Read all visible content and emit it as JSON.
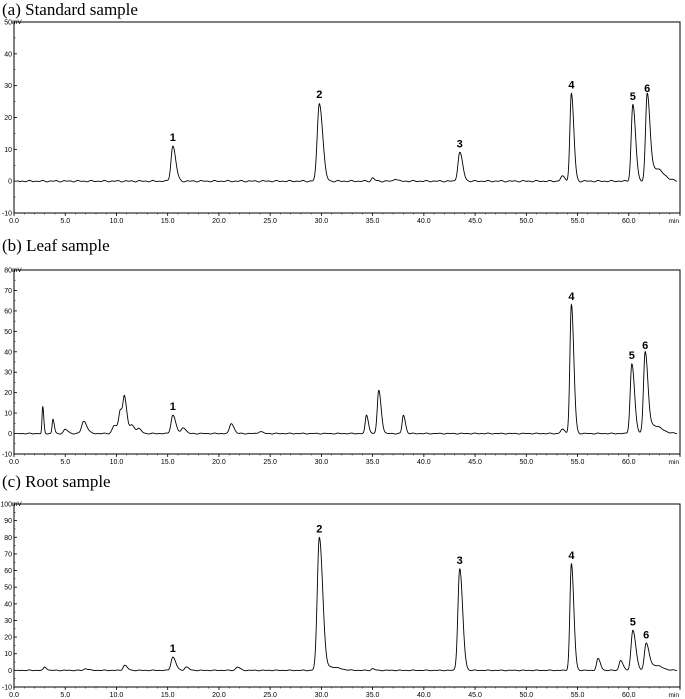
{
  "chart_data": [
    {
      "type": "line",
      "title": "(a) Standard sample",
      "yunit": "mV",
      "xunit": "min",
      "xlim": [
        0,
        65
      ],
      "ylim": [
        -10,
        50
      ],
      "xticks": [
        "0.0",
        "5.0",
        "10.0",
        "15.0",
        "20.0",
        "25.0",
        "30.0",
        "35.0",
        "40.0",
        "45.0",
        "50.0",
        "55.0",
        "60.0",
        "65.0"
      ],
      "yticks": [
        "-10",
        "0",
        "10",
        "20",
        "30",
        "40",
        "50"
      ],
      "peaks": [
        {
          "label": "1",
          "x": 15.5,
          "y": 11,
          "w": 0.22
        },
        {
          "label": "2",
          "x": 29.8,
          "y": 24.5,
          "w": 0.25
        },
        {
          "label": "3",
          "x": 43.5,
          "y": 9,
          "w": 0.22
        },
        {
          "label": "4",
          "x": 54.4,
          "y": 27.5,
          "w": 0.18
        },
        {
          "label": "5",
          "x": 60.4,
          "y": 24,
          "w": 0.2
        },
        {
          "label": "6",
          "x": 61.8,
          "y": 26.5,
          "w": 0.2
        }
      ],
      "minor_peaks": [
        {
          "x": 35.0,
          "y": 1.0,
          "w": 0.15
        },
        {
          "x": 37.2,
          "y": 0.8,
          "w": 0.15
        },
        {
          "x": 53.5,
          "y": 1.5,
          "w": 0.2
        },
        {
          "x": 62.6,
          "y": 4.0,
          "w": 0.6
        }
      ]
    },
    {
      "type": "line",
      "title": "(b) Leaf sample",
      "yunit": "mV",
      "xunit": "min",
      "xlim": [
        0,
        65
      ],
      "ylim": [
        -10,
        80
      ],
      "xticks": [
        "0.0",
        "5.0",
        "10.0",
        "15.0",
        "20.0",
        "25.0",
        "30.0",
        "35.0",
        "40.0",
        "45.0",
        "50.0",
        "55.0",
        "60.0",
        "65.0"
      ],
      "yticks": [
        "-10",
        "0",
        "10",
        "20",
        "30",
        "40",
        "50",
        "60",
        "70",
        "80"
      ],
      "peaks": [
        {
          "label": "1",
          "x": 15.5,
          "y": 9,
          "w": 0.22
        },
        {
          "label": "4",
          "x": 54.4,
          "y": 63,
          "w": 0.18
        },
        {
          "label": "5",
          "x": 60.3,
          "y": 34,
          "w": 0.2
        },
        {
          "label": "6",
          "x": 61.6,
          "y": 39,
          "w": 0.2
        }
      ],
      "minor_peaks": [
        {
          "x": 2.8,
          "y": 13,
          "w": 0.08
        },
        {
          "x": 3.8,
          "y": 7,
          "w": 0.1
        },
        {
          "x": 5.0,
          "y": 2,
          "w": 0.2
        },
        {
          "x": 6.8,
          "y": 6,
          "w": 0.25
        },
        {
          "x": 9.8,
          "y": 4,
          "w": 0.25
        },
        {
          "x": 10.4,
          "y": 11,
          "w": 0.2
        },
        {
          "x": 10.8,
          "y": 15,
          "w": 0.18
        },
        {
          "x": 11.5,
          "y": 4,
          "w": 0.25
        },
        {
          "x": 12.2,
          "y": 2,
          "w": 0.2
        },
        {
          "x": 16.5,
          "y": 3,
          "w": 0.2
        },
        {
          "x": 21.2,
          "y": 5,
          "w": 0.2
        },
        {
          "x": 24.0,
          "y": 1,
          "w": 0.2
        },
        {
          "x": 34.4,
          "y": 9,
          "w": 0.15
        },
        {
          "x": 35.6,
          "y": 21,
          "w": 0.18
        },
        {
          "x": 38.0,
          "y": 9,
          "w": 0.15
        },
        {
          "x": 53.5,
          "y": 2,
          "w": 0.2
        },
        {
          "x": 62.4,
          "y": 4,
          "w": 0.6
        }
      ]
    },
    {
      "type": "line",
      "title": "(c) Root sample",
      "yunit": "mV",
      "xunit": "min",
      "xlim": [
        0,
        65
      ],
      "ylim": [
        -10,
        100
      ],
      "xticks": [
        "0.0",
        "5.0",
        "10.0",
        "15.0",
        "20.0",
        "25.0",
        "30.0",
        "35.0",
        "40.0",
        "45.0",
        "50.0",
        "55.0",
        "60.0",
        "65.0"
      ],
      "yticks": [
        "-10",
        "0",
        "10",
        "20",
        "30",
        "40",
        "50",
        "60",
        "70",
        "80",
        "90",
        "100"
      ],
      "peaks": [
        {
          "label": "1",
          "x": 15.5,
          "y": 8,
          "w": 0.22
        },
        {
          "label": "2",
          "x": 29.8,
          "y": 80,
          "w": 0.25
        },
        {
          "label": "3",
          "x": 43.5,
          "y": 61,
          "w": 0.22
        },
        {
          "label": "4",
          "x": 54.4,
          "y": 64,
          "w": 0.18
        },
        {
          "label": "5",
          "x": 60.4,
          "y": 24,
          "w": 0.22
        },
        {
          "label": "6",
          "x": 61.7,
          "y": 16,
          "w": 0.22
        }
      ],
      "minor_peaks": [
        {
          "x": 3.0,
          "y": 2,
          "w": 0.15
        },
        {
          "x": 7.0,
          "y": 1,
          "w": 0.2
        },
        {
          "x": 10.8,
          "y": 3,
          "w": 0.2
        },
        {
          "x": 16.8,
          "y": 2,
          "w": 0.2
        },
        {
          "x": 21.8,
          "y": 2,
          "w": 0.2
        },
        {
          "x": 31.0,
          "y": 2,
          "w": 0.6
        },
        {
          "x": 35.0,
          "y": 1,
          "w": 0.15
        },
        {
          "x": 57.0,
          "y": 7,
          "w": 0.18
        },
        {
          "x": 59.2,
          "y": 6,
          "w": 0.18
        },
        {
          "x": 62.6,
          "y": 3,
          "w": 0.5
        }
      ]
    }
  ]
}
